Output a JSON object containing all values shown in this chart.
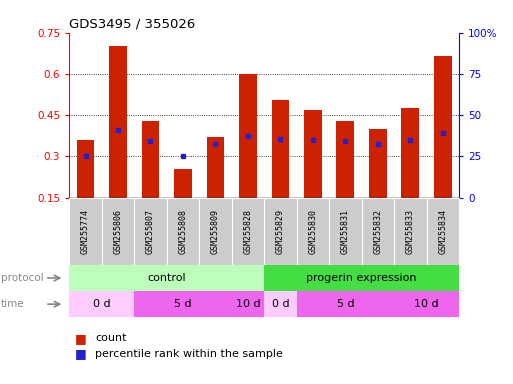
{
  "title": "GDS3495 / 355026",
  "samples": [
    "GSM255774",
    "GSM255806",
    "GSM255807",
    "GSM255808",
    "GSM255809",
    "GSM255828",
    "GSM255829",
    "GSM255830",
    "GSM255831",
    "GSM255832",
    "GSM255833",
    "GSM255834"
  ],
  "bar_heights": [
    0.36,
    0.7,
    0.43,
    0.255,
    0.37,
    0.6,
    0.505,
    0.47,
    0.43,
    0.4,
    0.475,
    0.665
  ],
  "blue_dot_y": [
    0.3,
    0.395,
    0.355,
    0.3,
    0.345,
    0.375,
    0.365,
    0.36,
    0.355,
    0.345,
    0.36,
    0.385
  ],
  "ylim_left": [
    0.15,
    0.75
  ],
  "yticks_left": [
    0.15,
    0.3,
    0.45,
    0.6,
    0.75
  ],
  "yticks_right": [
    0,
    25,
    50,
    75,
    100
  ],
  "bar_color": "#cc2200",
  "dot_color": "#2222cc",
  "bg_color": "#ffffff",
  "sample_box_color": "#cccccc",
  "proto_control_color": "#bbffbb",
  "proto_progerin_color": "#44dd44",
  "time_0d_color": "#ffccff",
  "time_5d_color": "#ee66ee",
  "time_10d_color": "#ee66ee",
  "label_color": "#888888",
  "arrow_color": "#888888"
}
